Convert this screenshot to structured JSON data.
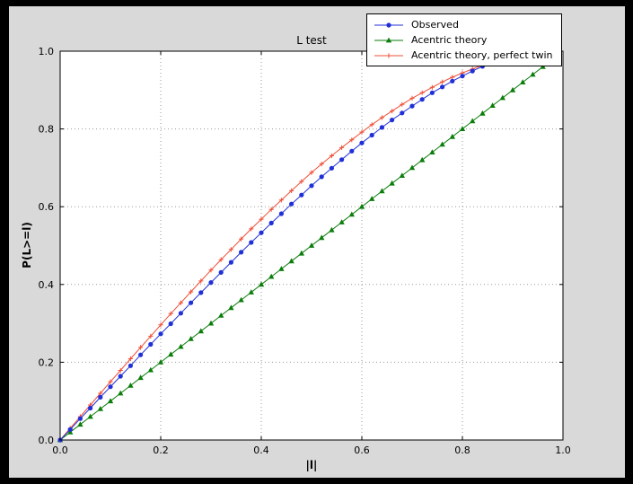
{
  "chart_data": {
    "type": "line",
    "title": "L test",
    "xlabel": "|l|",
    "ylabel": "P(L>=l)",
    "xlim": [
      0.0,
      1.0
    ],
    "ylim": [
      0.0,
      1.0
    ],
    "xticks": [
      "0.0",
      "0.2",
      "0.4",
      "0.6",
      "0.8",
      "1.0"
    ],
    "yticks": [
      "0.0",
      "0.2",
      "0.4",
      "0.6",
      "0.8",
      "1.0"
    ],
    "grid": true,
    "legend_position": "upper right",
    "background": {
      "outer": "#000000",
      "figure": "#d9d9d9",
      "axes": "#ffffff"
    },
    "series": [
      {
        "name": "Observed",
        "color": "#2030d8",
        "marker": "circle",
        "x": [
          0.0,
          0.02,
          0.04,
          0.06,
          0.08,
          0.1,
          0.12,
          0.14,
          0.16,
          0.18,
          0.2,
          0.22,
          0.24,
          0.26,
          0.28,
          0.3,
          0.32,
          0.34,
          0.36,
          0.38,
          0.4,
          0.42,
          0.44,
          0.46,
          0.48,
          0.5,
          0.52,
          0.54,
          0.56,
          0.58,
          0.6,
          0.62,
          0.64,
          0.66,
          0.68,
          0.7,
          0.72,
          0.74,
          0.76,
          0.78,
          0.8,
          0.82,
          0.84,
          0.86
        ],
        "y": [
          0.0,
          0.027,
          0.055,
          0.082,
          0.11,
          0.137,
          0.164,
          0.191,
          0.219,
          0.246,
          0.273,
          0.299,
          0.326,
          0.353,
          0.379,
          0.405,
          0.431,
          0.457,
          0.483,
          0.508,
          0.533,
          0.558,
          0.582,
          0.607,
          0.63,
          0.654,
          0.677,
          0.699,
          0.721,
          0.743,
          0.764,
          0.784,
          0.804,
          0.823,
          0.841,
          0.859,
          0.876,
          0.893,
          0.908,
          0.923,
          0.936,
          0.949,
          0.961,
          0.972
        ]
      },
      {
        "name": "Acentric theory",
        "color": "#0b7d0b",
        "marker": "triangle-up",
        "x": [
          0.0,
          0.02,
          0.04,
          0.06,
          0.08,
          0.1,
          0.12,
          0.14,
          0.16,
          0.18,
          0.2,
          0.22,
          0.24,
          0.26,
          0.28,
          0.3,
          0.32,
          0.34,
          0.36,
          0.38,
          0.4,
          0.42,
          0.44,
          0.46,
          0.48,
          0.5,
          0.52,
          0.54,
          0.56,
          0.58,
          0.6,
          0.62,
          0.64,
          0.66,
          0.68,
          0.7,
          0.72,
          0.74,
          0.76,
          0.78,
          0.8,
          0.82,
          0.84,
          0.86,
          0.88,
          0.9,
          0.92,
          0.94,
          0.96
        ],
        "y": [
          0.0,
          0.02,
          0.04,
          0.06,
          0.08,
          0.1,
          0.12,
          0.14,
          0.16,
          0.18,
          0.2,
          0.22,
          0.24,
          0.26,
          0.28,
          0.3,
          0.32,
          0.34,
          0.36,
          0.38,
          0.4,
          0.42,
          0.44,
          0.46,
          0.48,
          0.5,
          0.52,
          0.54,
          0.56,
          0.58,
          0.6,
          0.62,
          0.64,
          0.66,
          0.68,
          0.7,
          0.72,
          0.74,
          0.76,
          0.78,
          0.8,
          0.82,
          0.84,
          0.86,
          0.88,
          0.9,
          0.92,
          0.94,
          0.96
        ]
      },
      {
        "name": "Acentric theory, perfect twin",
        "color": "#ef4f38",
        "marker": "plus",
        "x": [
          0.0,
          0.02,
          0.04,
          0.06,
          0.08,
          0.1,
          0.12,
          0.14,
          0.16,
          0.18,
          0.2,
          0.22,
          0.24,
          0.26,
          0.28,
          0.3,
          0.32,
          0.34,
          0.36,
          0.38,
          0.4,
          0.42,
          0.44,
          0.46,
          0.48,
          0.5,
          0.52,
          0.54,
          0.56,
          0.58,
          0.6,
          0.62,
          0.64,
          0.66,
          0.68,
          0.7,
          0.72,
          0.74,
          0.76,
          0.78,
          0.8,
          0.82,
          0.84
        ],
        "y": [
          0.0,
          0.03,
          0.06,
          0.09,
          0.12,
          0.15,
          0.179,
          0.209,
          0.238,
          0.267,
          0.296,
          0.325,
          0.353,
          0.381,
          0.409,
          0.437,
          0.464,
          0.49,
          0.517,
          0.543,
          0.568,
          0.593,
          0.617,
          0.641,
          0.665,
          0.688,
          0.71,
          0.731,
          0.752,
          0.772,
          0.792,
          0.811,
          0.829,
          0.846,
          0.863,
          0.879,
          0.893,
          0.907,
          0.921,
          0.933,
          0.944,
          0.954,
          0.964
        ]
      }
    ]
  }
}
